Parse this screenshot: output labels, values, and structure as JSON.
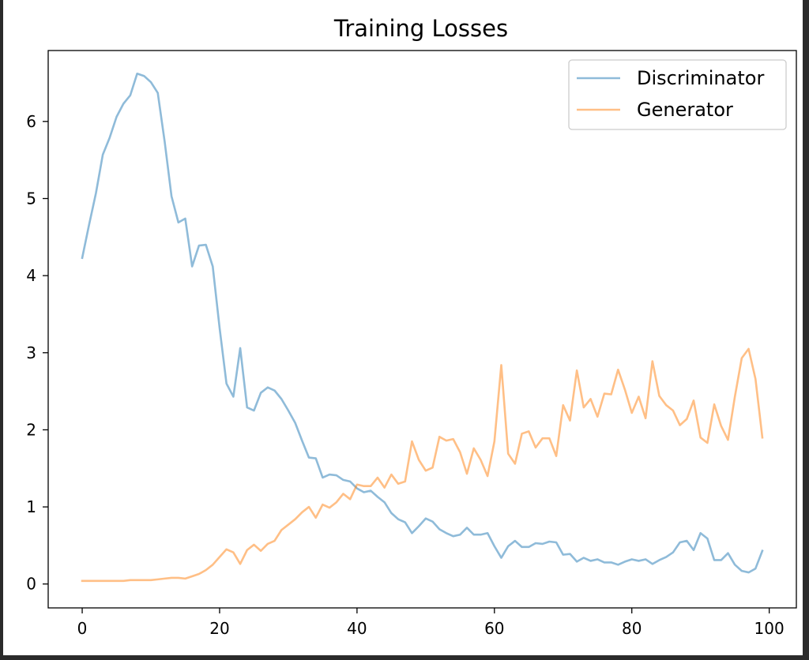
{
  "chart_data": {
    "type": "line",
    "title": "Training Losses",
    "xlabel": "",
    "ylabel": "",
    "xlim": [
      -4.95,
      103.95
    ],
    "ylim": [
      -0.31,
      6.92
    ],
    "x_ticks": [
      0,
      20,
      40,
      60,
      80,
      100
    ],
    "y_ticks": [
      0,
      1,
      2,
      3,
      4,
      5,
      6
    ],
    "grid": false,
    "legend_position": "upper right",
    "series": [
      {
        "name": "Discriminator",
        "color": "#1f77b4",
        "x": [
          0,
          1,
          2,
          3,
          4,
          5,
          6,
          7,
          8,
          9,
          10,
          11,
          12,
          13,
          14,
          15,
          16,
          17,
          18,
          19,
          20,
          21,
          22,
          23,
          24,
          25,
          26,
          27,
          28,
          29,
          30,
          31,
          32,
          33,
          34,
          35,
          36,
          37,
          38,
          39,
          40,
          41,
          42,
          43,
          44,
          45,
          46,
          47,
          48,
          49,
          50,
          51,
          52,
          53,
          54,
          55,
          56,
          57,
          58,
          59,
          60,
          61,
          62,
          63,
          64,
          65,
          66,
          67,
          68,
          69,
          70,
          71,
          72,
          73,
          74,
          75,
          76,
          77,
          78,
          79,
          80,
          81,
          82,
          83,
          84,
          85,
          86,
          87,
          88,
          89,
          90,
          91,
          92,
          93,
          94,
          95,
          96,
          97,
          98,
          99
        ],
        "values": [
          4.23,
          4.66,
          5.07,
          5.57,
          5.79,
          6.06,
          6.23,
          6.34,
          6.62,
          6.59,
          6.51,
          6.37,
          5.74,
          5.03,
          4.69,
          4.74,
          4.12,
          4.39,
          4.4,
          4.12,
          3.32,
          2.6,
          2.43,
          3.06,
          2.29,
          2.25,
          2.48,
          2.55,
          2.51,
          2.4,
          2.25,
          2.09,
          1.86,
          1.64,
          1.63,
          1.38,
          1.42,
          1.41,
          1.35,
          1.33,
          1.24,
          1.19,
          1.21,
          1.13,
          1.06,
          0.92,
          0.84,
          0.8,
          0.66,
          0.75,
          0.85,
          0.81,
          0.71,
          0.66,
          0.62,
          0.64,
          0.73,
          0.64,
          0.64,
          0.66,
          0.49,
          0.34,
          0.49,
          0.56,
          0.48,
          0.48,
          0.53,
          0.52,
          0.55,
          0.54,
          0.38,
          0.39,
          0.29,
          0.34,
          0.3,
          0.32,
          0.28,
          0.28,
          0.25,
          0.29,
          0.32,
          0.3,
          0.32,
          0.26,
          0.31,
          0.35,
          0.41,
          0.54,
          0.56,
          0.44,
          0.66,
          0.59,
          0.31,
          0.31,
          0.4,
          0.25,
          0.17,
          0.15,
          0.2,
          0.43
        ]
      },
      {
        "name": "Generator",
        "color": "#ff7f0e",
        "x": [
          0,
          1,
          2,
          3,
          4,
          5,
          6,
          7,
          8,
          9,
          10,
          11,
          12,
          13,
          14,
          15,
          16,
          17,
          18,
          19,
          20,
          21,
          22,
          23,
          24,
          25,
          26,
          27,
          28,
          29,
          30,
          31,
          32,
          33,
          34,
          35,
          36,
          37,
          38,
          39,
          40,
          41,
          42,
          43,
          44,
          45,
          46,
          47,
          48,
          49,
          50,
          51,
          52,
          53,
          54,
          55,
          56,
          57,
          58,
          59,
          60,
          61,
          62,
          63,
          64,
          65,
          66,
          67,
          68,
          69,
          70,
          71,
          72,
          73,
          74,
          75,
          76,
          77,
          78,
          79,
          80,
          81,
          82,
          83,
          84,
          85,
          86,
          87,
          88,
          89,
          90,
          91,
          92,
          93,
          94,
          95,
          96,
          97,
          98,
          99
        ],
        "values": [
          0.04,
          0.04,
          0.04,
          0.04,
          0.04,
          0.04,
          0.04,
          0.05,
          0.05,
          0.05,
          0.05,
          0.06,
          0.07,
          0.08,
          0.08,
          0.07,
          0.1,
          0.13,
          0.18,
          0.25,
          0.35,
          0.45,
          0.41,
          0.26,
          0.44,
          0.51,
          0.43,
          0.52,
          0.56,
          0.7,
          0.77,
          0.84,
          0.93,
          1.0,
          0.86,
          1.03,
          0.99,
          1.06,
          1.17,
          1.1,
          1.29,
          1.27,
          1.27,
          1.38,
          1.25,
          1.42,
          1.3,
          1.33,
          1.85,
          1.61,
          1.47,
          1.51,
          1.91,
          1.86,
          1.88,
          1.71,
          1.43,
          1.76,
          1.61,
          1.4,
          1.85,
          2.84,
          1.69,
          1.56,
          1.95,
          1.98,
          1.77,
          1.89,
          1.89,
          1.66,
          2.32,
          2.12,
          2.77,
          2.29,
          2.4,
          2.17,
          2.47,
          2.46,
          2.78,
          2.52,
          2.22,
          2.43,
          2.15,
          2.89,
          2.44,
          2.32,
          2.25,
          2.06,
          2.14,
          2.38,
          1.9,
          1.83,
          2.33,
          2.05,
          1.87,
          2.43,
          2.93,
          3.05,
          2.66,
          1.9
        ]
      }
    ]
  }
}
